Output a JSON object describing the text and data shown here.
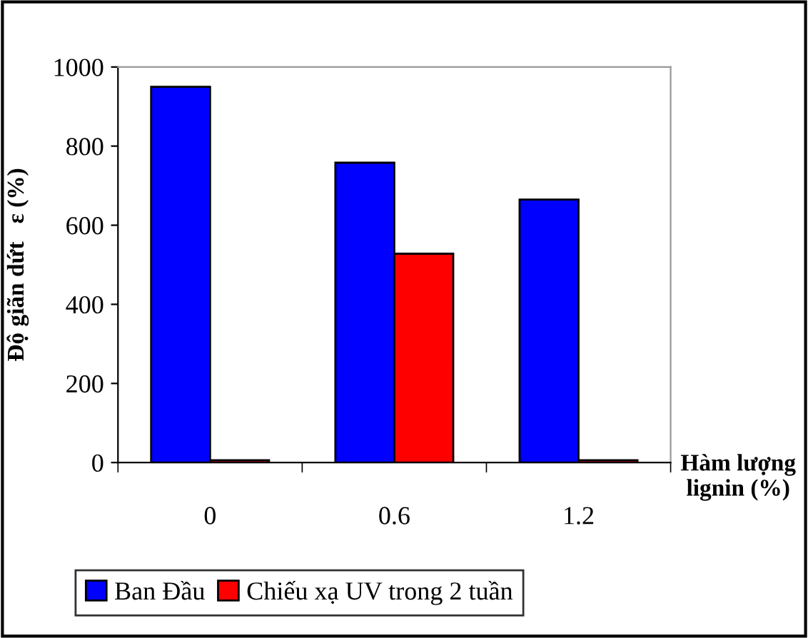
{
  "chart_data": {
    "type": "bar",
    "ylabel": "Độ giãn dứt   ε (%)",
    "xlabel": "Hàm lượng\nlignin (%)",
    "categories": [
      "0",
      "0.6",
      "1.2"
    ],
    "series": [
      {
        "name": "Ban Đầu",
        "color": "#0000ff",
        "values": [
          950,
          758,
          665
        ]
      },
      {
        "name": "Chiếu xạ UV trong 2 tuần",
        "color": "#ff0000",
        "values": [
          6,
          528,
          6
        ]
      }
    ],
    "ylim": [
      0,
      1000
    ],
    "yticks": [
      0,
      200,
      400,
      600,
      800,
      1000
    ],
    "grid": false,
    "legend": "bottom"
  }
}
